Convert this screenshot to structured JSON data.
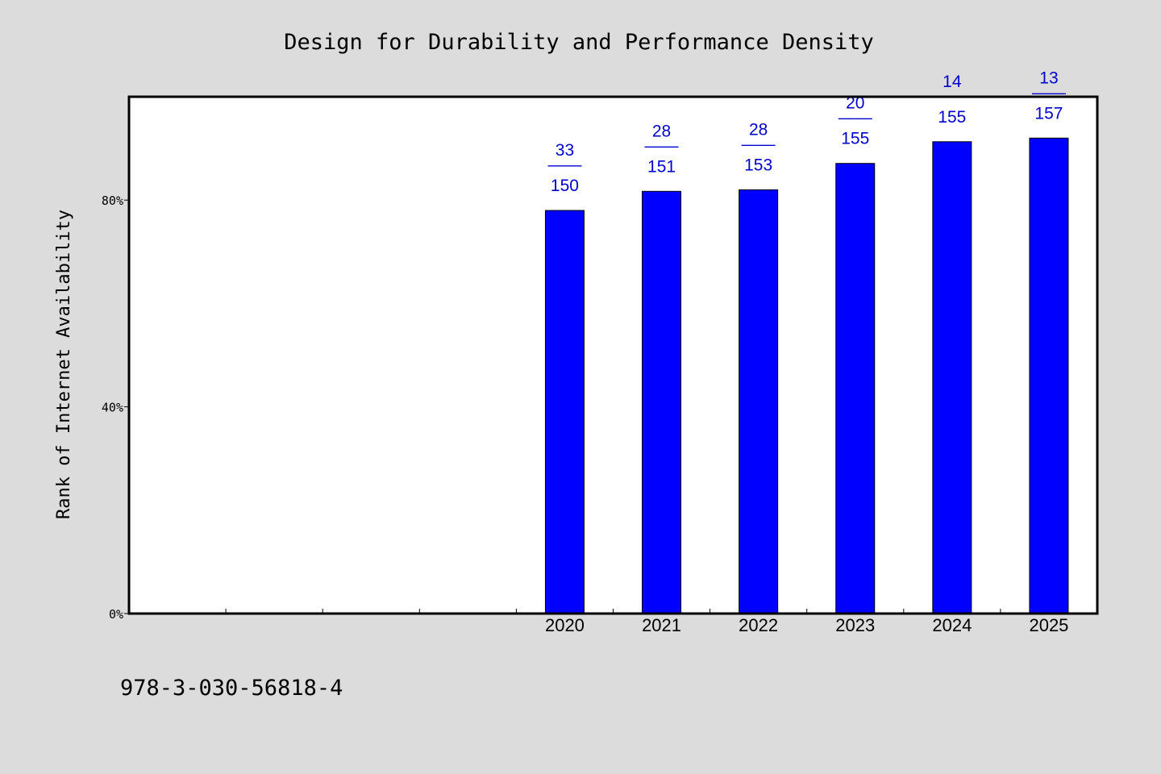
{
  "chart_data": {
    "type": "bar",
    "title": "Design for Durability and Performance Density",
    "xlabel": "",
    "ylabel": "Rank of Internet Availability",
    "categories": [
      "",
      "",
      "",
      "",
      "2020",
      "2021",
      "2022",
      "2023",
      "2024",
      "2025"
    ],
    "values": [
      null,
      null,
      null,
      null,
      78.0,
      81.7,
      82.0,
      87.1,
      91.3,
      92.0
    ],
    "data_labels": [
      null,
      null,
      null,
      null,
      {
        "top": "33",
        "sep": "——",
        "bottom": "150"
      },
      {
        "top": "28",
        "sep": "——",
        "bottom": "151"
      },
      {
        "top": "28",
        "sep": "——",
        "bottom": "153"
      },
      {
        "top": "20",
        "sep": "——",
        "bottom": "155"
      },
      {
        "top": "14",
        "sep": "——",
        "bottom": "155"
      },
      {
        "top": "13",
        "sep": "——",
        "bottom": "157"
      }
    ],
    "ylim": [
      0,
      100
    ],
    "yticks": [
      0,
      40,
      80
    ],
    "ytick_labels": [
      "0%",
      "40%",
      "80%"
    ],
    "grid": false,
    "bar_color": "#0000ff",
    "label_color": "#0000cc",
    "background_color": "#dcdcdc",
    "plot_background": "#ffffff"
  },
  "footer": {
    "isbn": "978-3-030-56818-4"
  }
}
